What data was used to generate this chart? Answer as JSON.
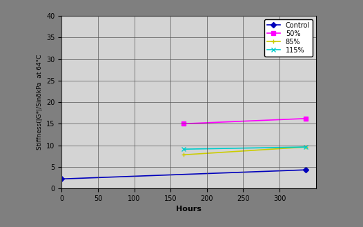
{
  "title": "",
  "xlabel": "Hours",
  "ylabel": "Stiffness(|G*|/SinδkPa  at 64°C",
  "xlim": [
    0,
    350
  ],
  "ylim": [
    0,
    40
  ],
  "xticks": [
    0,
    50,
    100,
    150,
    200,
    250,
    300
  ],
  "yticks": [
    0,
    5,
    10,
    15,
    20,
    25,
    30,
    35,
    40
  ],
  "series": [
    {
      "label": "Control",
      "x": [
        0,
        336
      ],
      "y": [
        2.2,
        4.3
      ],
      "color": "#0000bb",
      "marker": "D",
      "markersize": 4,
      "linewidth": 1.2
    },
    {
      "label": "50%",
      "x": [
        168,
        336
      ],
      "y": [
        15.0,
        16.2
      ],
      "color": "#ff00ff",
      "marker": "s",
      "markersize": 4,
      "linewidth": 1.2
    },
    {
      "label": "85%",
      "x": [
        168,
        336
      ],
      "y": [
        7.8,
        9.6
      ],
      "color": "#cccc00",
      "marker": "+",
      "markersize": 5,
      "linewidth": 1.2
    },
    {
      "label": "115%",
      "x": [
        168,
        336
      ],
      "y": [
        9.1,
        9.6
      ],
      "color": "#00cccc",
      "marker": "x",
      "markersize": 5,
      "linewidth": 1.2
    }
  ],
  "plot_bg_color": "#d4d4d4",
  "fig_bg_color": "#7f7f7f",
  "legend_fontsize": 7,
  "axis_label_fontsize": 8,
  "tick_fontsize": 7,
  "grid_color": "#555555",
  "grid_linewidth": 0.5
}
